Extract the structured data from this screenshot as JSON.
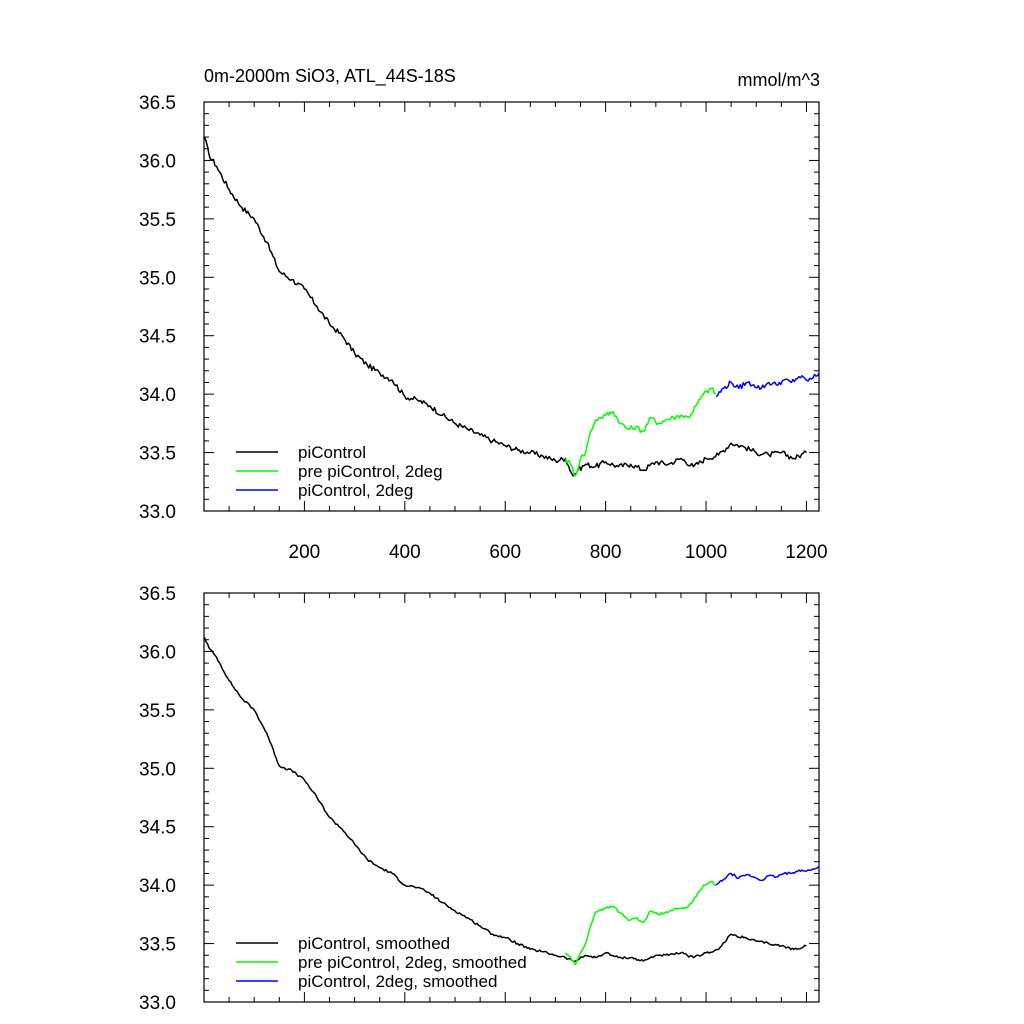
{
  "chart_data": [
    {
      "type": "line",
      "title": "0m-2000m SiO3, ATL_44S-18S",
      "units": "mmol/m^3",
      "xlabel": "",
      "ylabel": "",
      "xlim": [
        0,
        1225
      ],
      "ylim": [
        33.0,
        36.5
      ],
      "x_ticks": [
        "200",
        "400",
        "600",
        "800",
        "1000",
        "1200"
      ],
      "y_ticks": [
        "33.0",
        "33.5",
        "34.0",
        "34.5",
        "35.0",
        "35.5",
        "36.0",
        "36.5"
      ],
      "legend": "bottom-left",
      "series": [
        {
          "name": "piControl",
          "color": "#000000",
          "x": [
            1,
            10,
            25,
            50,
            75,
            100,
            125,
            150,
            175,
            200,
            225,
            250,
            275,
            300,
            325,
            350,
            375,
            400,
            425,
            450,
            475,
            500,
            525,
            550,
            575,
            600,
            625,
            650,
            675,
            700,
            720,
            735,
            745,
            760,
            780,
            800,
            825,
            850,
            875,
            900,
            925,
            950,
            975,
            1000,
            1025,
            1050,
            1075,
            1100,
            1125,
            1150,
            1175,
            1200
          ],
          "y": [
            36.2,
            36.05,
            35.95,
            35.75,
            35.6,
            35.5,
            35.3,
            35.05,
            34.98,
            34.9,
            34.75,
            34.6,
            34.5,
            34.35,
            34.25,
            34.18,
            34.12,
            33.98,
            33.95,
            33.9,
            33.82,
            33.75,
            33.7,
            33.65,
            33.6,
            33.56,
            33.52,
            33.5,
            33.47,
            33.43,
            33.45,
            33.3,
            33.35,
            33.4,
            33.38,
            33.42,
            33.38,
            33.4,
            33.35,
            33.42,
            33.4,
            33.45,
            33.38,
            33.45,
            33.48,
            33.58,
            33.55,
            33.5,
            33.48,
            33.5,
            33.45,
            33.5
          ]
        },
        {
          "name": "pre piControl, 2deg",
          "color": "#00ff00",
          "x": [
            720,
            730,
            740,
            750,
            760,
            770,
            780,
            790,
            800,
            815,
            830,
            845,
            860,
            875,
            890,
            905,
            920,
            935,
            950,
            965,
            980,
            995,
            1010,
            1020
          ],
          "y": [
            33.45,
            33.4,
            33.3,
            33.45,
            33.5,
            33.68,
            33.78,
            33.8,
            33.82,
            33.85,
            33.75,
            33.7,
            33.72,
            33.68,
            33.8,
            33.75,
            33.78,
            33.8,
            33.82,
            33.8,
            33.9,
            34.0,
            34.05,
            34.0
          ]
        },
        {
          "name": "piControl, 2deg",
          "color": "#0000ff",
          "x": [
            1020,
            1035,
            1050,
            1065,
            1080,
            1095,
            1110,
            1125,
            1140,
            1155,
            1170,
            1185,
            1200,
            1210,
            1225
          ],
          "y": [
            33.98,
            34.05,
            34.1,
            34.05,
            34.1,
            34.08,
            34.05,
            34.1,
            34.08,
            34.12,
            34.1,
            34.15,
            34.12,
            34.13,
            34.18
          ]
        }
      ]
    },
    {
      "type": "line",
      "title": "",
      "xlabel": "",
      "ylabel": "",
      "xlim": [
        0,
        1225
      ],
      "ylim": [
        33.0,
        36.5
      ],
      "y_ticks": [
        "33.0",
        "33.5",
        "34.0",
        "34.5",
        "35.0",
        "35.5",
        "36.0",
        "36.5"
      ],
      "legend": "bottom-left",
      "series": [
        {
          "name": "piControl, smoothed",
          "color": "#000000",
          "x": [
            1,
            10,
            25,
            50,
            75,
            100,
            125,
            150,
            175,
            200,
            225,
            250,
            275,
            300,
            325,
            350,
            375,
            400,
            425,
            450,
            475,
            500,
            525,
            550,
            575,
            600,
            625,
            650,
            675,
            700,
            720,
            735,
            745,
            760,
            780,
            800,
            825,
            850,
            875,
            900,
            925,
            950,
            975,
            1000,
            1025,
            1050,
            1075,
            1100,
            1125,
            1150,
            1175,
            1200
          ],
          "y": [
            36.12,
            36.03,
            35.95,
            35.75,
            35.6,
            35.5,
            35.3,
            35.02,
            34.98,
            34.9,
            34.75,
            34.58,
            34.48,
            34.35,
            34.22,
            34.15,
            34.1,
            34.0,
            33.98,
            33.93,
            33.85,
            33.78,
            33.72,
            33.65,
            33.58,
            33.55,
            33.5,
            33.45,
            33.43,
            33.4,
            33.38,
            33.35,
            33.36,
            33.4,
            33.38,
            33.42,
            33.38,
            33.38,
            33.35,
            33.4,
            33.4,
            33.42,
            33.38,
            33.42,
            33.45,
            33.58,
            33.55,
            33.52,
            33.5,
            33.48,
            33.45,
            33.48
          ]
        },
        {
          "name": "pre piControl, 2deg, smoothed",
          "color": "#00ff00",
          "x": [
            720,
            730,
            740,
            750,
            760,
            770,
            780,
            790,
            800,
            815,
            830,
            845,
            860,
            875,
            890,
            905,
            920,
            935,
            950,
            965,
            980,
            995,
            1010,
            1020
          ],
          "y": [
            33.42,
            33.38,
            33.32,
            33.42,
            33.5,
            33.65,
            33.77,
            33.79,
            33.8,
            33.82,
            33.76,
            33.7,
            33.72,
            33.68,
            33.78,
            33.75,
            33.77,
            33.79,
            33.8,
            33.82,
            33.9,
            34.0,
            34.03,
            34.0
          ]
        },
        {
          "name": "piControl, 2deg, smoothed",
          "color": "#0000ff",
          "x": [
            1020,
            1035,
            1050,
            1065,
            1080,
            1095,
            1110,
            1125,
            1140,
            1155,
            1170,
            1185,
            1200,
            1210,
            1225
          ],
          "y": [
            34.0,
            34.05,
            34.1,
            34.06,
            34.09,
            34.07,
            34.04,
            34.08,
            34.07,
            34.1,
            34.1,
            34.13,
            34.12,
            34.13,
            34.16
          ]
        }
      ]
    }
  ]
}
